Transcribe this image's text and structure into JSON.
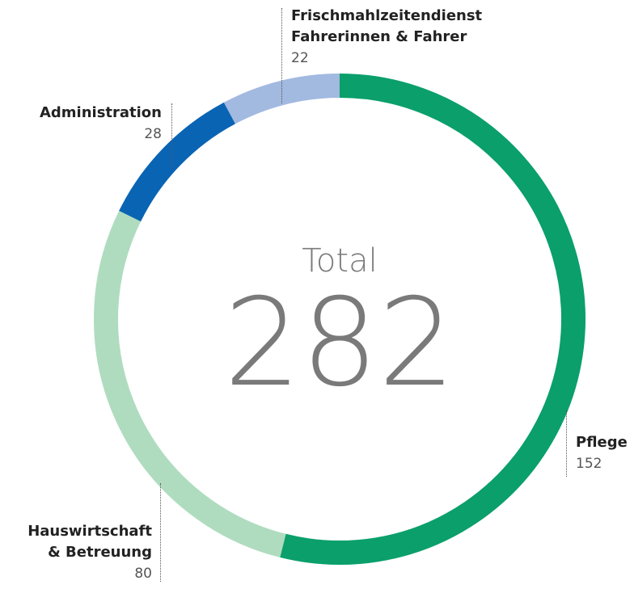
{
  "chart_data": {
    "type": "donut",
    "categories": [
      "Pflege",
      "Hauswirtschaft\n& Betreuung",
      "Administration",
      "Frischmahlzeitendienst\nFahrerinnen & Fahrer"
    ],
    "values": [
      152,
      80,
      28,
      22
    ],
    "colors": [
      "#0a9f6b",
      "#afdcbf",
      "#0a64b4",
      "#a2b9e0"
    ],
    "center_label": "Total",
    "total": 282
  }
}
